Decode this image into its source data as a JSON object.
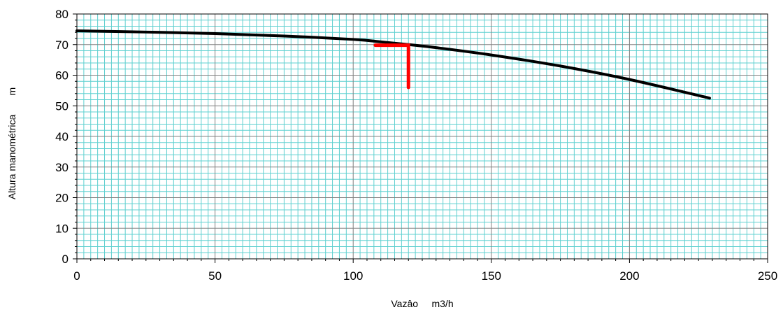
{
  "chart_data": {
    "type": "line",
    "xlabel": "Vazâo     m3/h",
    "ylabel": "Altura manométrica       m",
    "xlim": [
      0,
      250
    ],
    "ylim": [
      0,
      80
    ],
    "x_ticks": [
      0,
      50,
      100,
      150,
      200,
      250
    ],
    "y_ticks": [
      0,
      10,
      20,
      30,
      40,
      50,
      60,
      70,
      80
    ],
    "x_tick_labels": [
      "0",
      "50",
      "100",
      "150",
      "200",
      "250"
    ],
    "y_tick_labels": [
      "0",
      "10",
      "20",
      "30",
      "40",
      "50",
      "60",
      "70",
      "80"
    ],
    "grid": true,
    "minor_grid": true,
    "colors": {
      "minor_grid": "#5fd0d0",
      "major_grid": "#808080",
      "curve": "#000000",
      "operating_point": "#ff0000"
    },
    "series": [
      {
        "color": "#000000",
        "x": [
          0,
          25,
          50,
          75,
          100,
          110,
          120,
          130,
          150,
          175,
          200,
          229
        ],
        "y": [
          74.5,
          74.1,
          73.6,
          72.8,
          71.7,
          70.9,
          70.0,
          69.0,
          66.6,
          63.0,
          58.6,
          52.5
        ]
      },
      {
        "color": "#ff0000",
        "x": [
          108,
          120,
          120
        ],
        "y": [
          69.8,
          69.8,
          56
        ]
      }
    ]
  }
}
